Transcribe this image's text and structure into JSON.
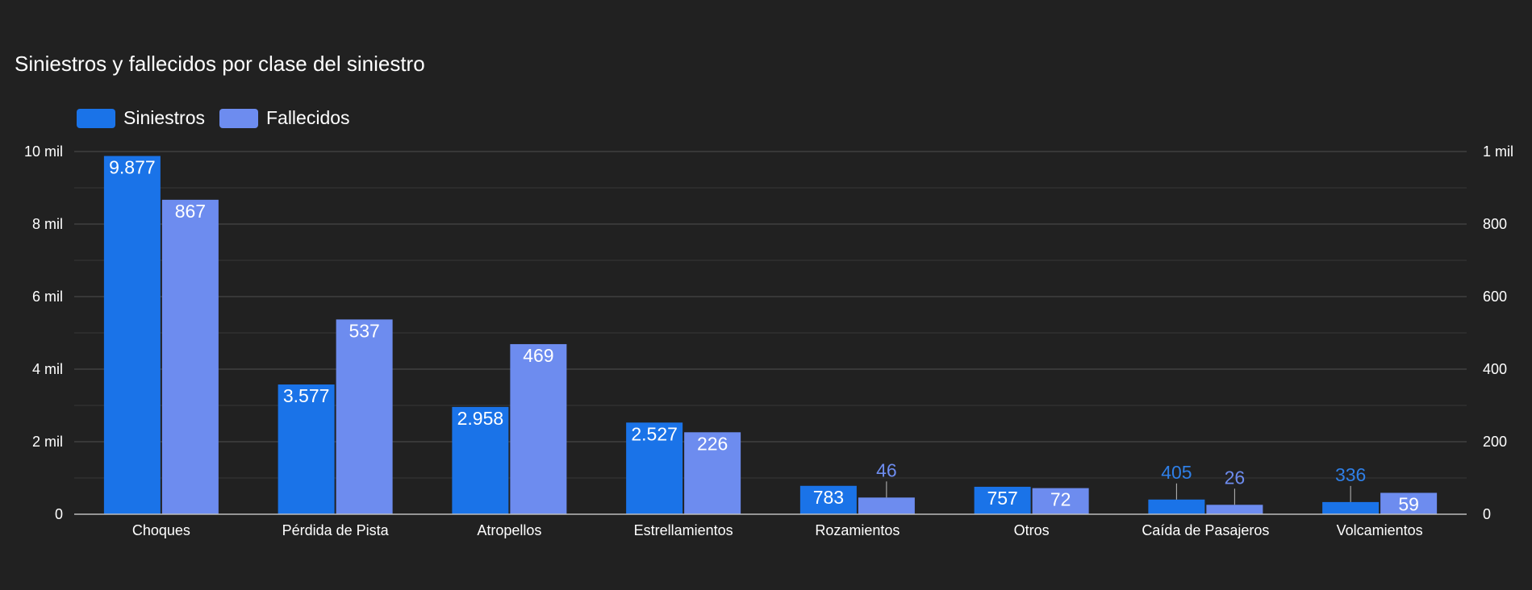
{
  "title": "Siniestros y fallecidos por clase del siniestro",
  "colors": {
    "background": "#212121",
    "grid": "#474747",
    "axis": "#bdbdbd",
    "text": "#ffffff",
    "siniestros": "#1a73e8",
    "fallecidos": "#6d8cef",
    "outside_label_siniestros": "#2f7fe6",
    "outside_label_fallecidos": "#6d8cef"
  },
  "chart_data": {
    "type": "bar",
    "title": "Siniestros y fallecidos por clase del siniestro",
    "categories": [
      "Choques",
      "Pérdida de Pista",
      "Atropellos",
      "Estrellamientos",
      "Rozamientos",
      "Otros",
      "Caída de Pasajeros",
      "Volcamientos"
    ],
    "series": [
      {
        "name": "Siniestros",
        "axis": "left",
        "values": [
          9877,
          3577,
          2958,
          2527,
          783,
          757,
          405,
          336
        ],
        "labels": [
          "9.877",
          "3.577",
          "2.958",
          "2.527",
          "783",
          "757",
          "405",
          "336"
        ]
      },
      {
        "name": "Fallecidos",
        "axis": "right",
        "values": [
          867,
          537,
          469,
          226,
          46,
          72,
          26,
          59
        ],
        "labels": [
          "867",
          "537",
          "469",
          "226",
          "46",
          "72",
          "26",
          "59"
        ]
      }
    ],
    "ylim_left": [
      0,
      10000
    ],
    "ylim_right": [
      0,
      1000
    ],
    "left_ticks": [
      {
        "value": 0,
        "label": "0"
      },
      {
        "value": 2000,
        "label": "2 mil"
      },
      {
        "value": 4000,
        "label": "4 mil"
      },
      {
        "value": 6000,
        "label": "6 mil"
      },
      {
        "value": 8000,
        "label": "8 mil"
      },
      {
        "value": 10000,
        "label": "10 mil"
      }
    ],
    "right_ticks": [
      {
        "value": 0,
        "label": "0"
      },
      {
        "value": 200,
        "label": "200"
      },
      {
        "value": 400,
        "label": "400"
      },
      {
        "value": 600,
        "label": "600"
      },
      {
        "value": 800,
        "label": "800"
      },
      {
        "value": 1000,
        "label": "1 mil"
      }
    ],
    "minor_grid": true,
    "legend_position": "top-left",
    "xlabel": "",
    "ylabel": ""
  }
}
